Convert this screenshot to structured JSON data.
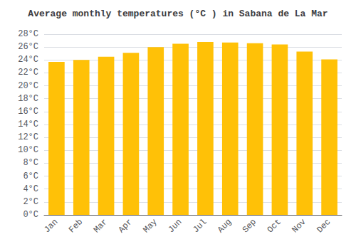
{
  "chart_data": {
    "type": "bar",
    "title": "Average monthly temperatures (°C ) in Sabana de La Mar",
    "categories": [
      "Jan",
      "Feb",
      "Mar",
      "Apr",
      "May",
      "Jun",
      "Jul",
      "Aug",
      "Sep",
      "Oct",
      "Nov",
      "Dec"
    ],
    "values": [
      23.7,
      24.0,
      24.5,
      25.1,
      26.0,
      26.5,
      26.8,
      26.7,
      26.6,
      26.4,
      25.3,
      24.1
    ],
    "color": "#FFC107",
    "ylim": [
      0,
      28
    ],
    "yticks": [
      {
        "value": 0,
        "label": "0°C"
      },
      {
        "value": 2,
        "label": "2°C"
      },
      {
        "value": 4,
        "label": "4°C"
      },
      {
        "value": 6,
        "label": "6°C"
      },
      {
        "value": 8,
        "label": "8°C"
      },
      {
        "value": 10,
        "label": "10°C"
      },
      {
        "value": 12,
        "label": "12°C"
      },
      {
        "value": 14,
        "label": "14°C"
      },
      {
        "value": 16,
        "label": "16°C"
      },
      {
        "value": 18,
        "label": "18°C"
      },
      {
        "value": 20,
        "label": "20°C"
      },
      {
        "value": 22,
        "label": "22°C"
      },
      {
        "value": 24,
        "label": "24°C"
      },
      {
        "value": 26,
        "label": "26°C"
      },
      {
        "value": 28,
        "label": "28°C"
      }
    ],
    "grid": true
  }
}
